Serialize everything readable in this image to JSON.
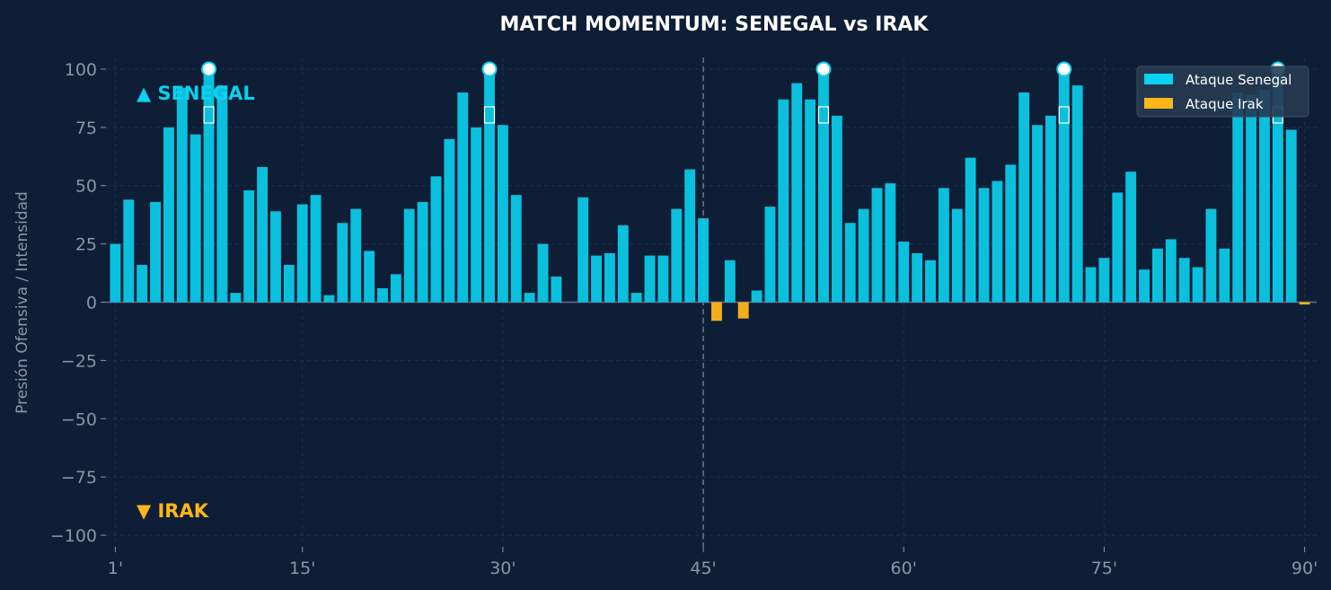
{
  "chart_data": {
    "type": "bar",
    "title": "MATCH MOMENTUM: SENEGAL vs IRAK",
    "ylabel": "Presión Ofensiva / Intensidad",
    "xlabel": "",
    "ylim": [
      -105,
      105
    ],
    "xlim": [
      0.3,
      90.9
    ],
    "grid": true,
    "legend_position": "top-right",
    "halftime_line": 45,
    "yticks": [
      100,
      75,
      50,
      25,
      0,
      -25,
      -50,
      -75,
      -100
    ],
    "ytick_labels": [
      "100",
      "75",
      "50",
      "25",
      "0",
      "−25",
      "−50",
      "−75",
      "−100"
    ],
    "xticks": [
      1,
      15,
      30,
      45,
      60,
      75,
      90
    ],
    "xtick_labels": [
      "1'",
      "15'",
      "30'",
      "45'",
      "60'",
      "75'",
      "90'"
    ],
    "team_labels": {
      "top": "▲ SENEGAL",
      "bottom": "▼ IRAK"
    },
    "colors": {
      "senegal": "#0ad2f0",
      "irak": "#ffb61a",
      "background": "#0e1e36",
      "grid": "#1d3350"
    },
    "x": [
      1,
      2,
      3,
      4,
      5,
      6,
      7,
      8,
      9,
      10,
      11,
      12,
      13,
      14,
      15,
      16,
      17,
      18,
      19,
      20,
      21,
      22,
      23,
      24,
      25,
      26,
      27,
      28,
      29,
      30,
      31,
      32,
      33,
      34,
      35,
      36,
      37,
      38,
      39,
      40,
      41,
      42,
      43,
      44,
      45,
      46,
      47,
      48,
      49,
      50,
      51,
      52,
      53,
      54,
      55,
      56,
      57,
      58,
      59,
      60,
      61,
      62,
      63,
      64,
      65,
      66,
      67,
      68,
      69,
      70,
      71,
      72,
      73,
      74,
      75,
      76,
      77,
      78,
      79,
      80,
      81,
      82,
      83,
      84,
      85,
      86,
      87,
      88,
      89,
      90
    ],
    "series": [
      {
        "name": "Ataque Senegal",
        "color": "#0ad2f0",
        "values": [
          25,
          44,
          16,
          43,
          75,
          92,
          72,
          100,
          93,
          4,
          48,
          58,
          39,
          16,
          42,
          46,
          3,
          34,
          40,
          22,
          6,
          12,
          40,
          43,
          54,
          70,
          90,
          75,
          100,
          76,
          46,
          4,
          25,
          11,
          0,
          45,
          20,
          21,
          33,
          4,
          20,
          20,
          40,
          57,
          36,
          0,
          18,
          0,
          5,
          41,
          87,
          94,
          87,
          100,
          80,
          34,
          40,
          49,
          51,
          26,
          21,
          18,
          49,
          40,
          62,
          49,
          52,
          59,
          90,
          76,
          80,
          100,
          93,
          15,
          19,
          47,
          56,
          14,
          23,
          27,
          19,
          15,
          40,
          23,
          90,
          89,
          91,
          100,
          74,
          0
        ]
      },
      {
        "name": "Ataque Irak",
        "color": "#ffb61a",
        "values": [
          0,
          0,
          0,
          0,
          0,
          0,
          0,
          0,
          0,
          0,
          0,
          0,
          0,
          0,
          0,
          0,
          0,
          0,
          0,
          0,
          0,
          0,
          0,
          0,
          0,
          0,
          0,
          0,
          0,
          0,
          0,
          0,
          0,
          0,
          0,
          0,
          0,
          0,
          0,
          0,
          0,
          0,
          0,
          0,
          0,
          -8,
          0,
          -7,
          0,
          0,
          0,
          0,
          0,
          0,
          0,
          0,
          0,
          0,
          0,
          0,
          0,
          0,
          0,
          0,
          0,
          0,
          0,
          0,
          0,
          0,
          0,
          0,
          0,
          0,
          0,
          0,
          0,
          0,
          0,
          0,
          0,
          0,
          0,
          0,
          0,
          0,
          0,
          0,
          0,
          -1
        ]
      }
    ],
    "goals": [
      {
        "minute": 8,
        "team": "Senegal",
        "icon": "soccer-ball-icon"
      },
      {
        "minute": 29,
        "team": "Senegal",
        "icon": "soccer-ball-icon"
      },
      {
        "minute": 54,
        "team": "Senegal",
        "icon": "soccer-ball-icon"
      },
      {
        "minute": 72,
        "team": "Senegal",
        "icon": "soccer-ball-icon"
      },
      {
        "minute": 88,
        "team": "Senegal",
        "icon": "soccer-ball-icon"
      }
    ]
  }
}
